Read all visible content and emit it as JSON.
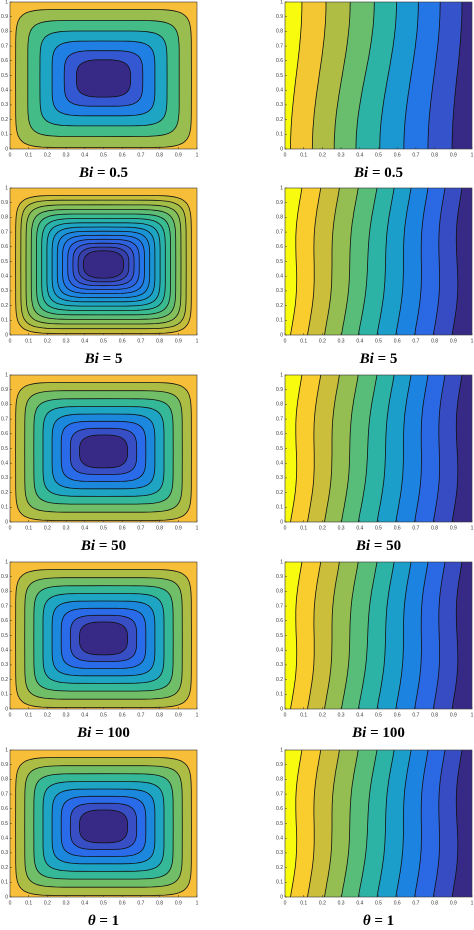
{
  "figure": {
    "xticks": [
      0,
      0.1,
      0.2,
      0.3,
      0.4,
      0.5,
      0.6,
      0.7,
      0.8,
      0.9,
      1
    ],
    "yticks": [
      0,
      0.1,
      0.2,
      0.3,
      0.4,
      0.5,
      0.6,
      0.7,
      0.8,
      0.9,
      1
    ],
    "rows": [
      {
        "left_caption": [
          "Bi",
          "= 0.5"
        ],
        "right_caption": [
          "Bi",
          "= 0.5"
        ]
      },
      {
        "left_caption": [
          "Bi",
          "= 5"
        ],
        "right_caption": [
          "Bi",
          "= 5"
        ]
      },
      {
        "left_caption": [
          "Bi",
          "= 50"
        ],
        "right_caption": [
          "Bi",
          "= 50"
        ]
      },
      {
        "left_caption": [
          "Bi",
          "= 100"
        ],
        "right_caption": [
          "Bi",
          "= 100"
        ]
      },
      {
        "left_caption": [
          "θ",
          "= 1"
        ],
        "right_caption": [
          "θ",
          "= 1"
        ]
      }
    ]
  }
}
